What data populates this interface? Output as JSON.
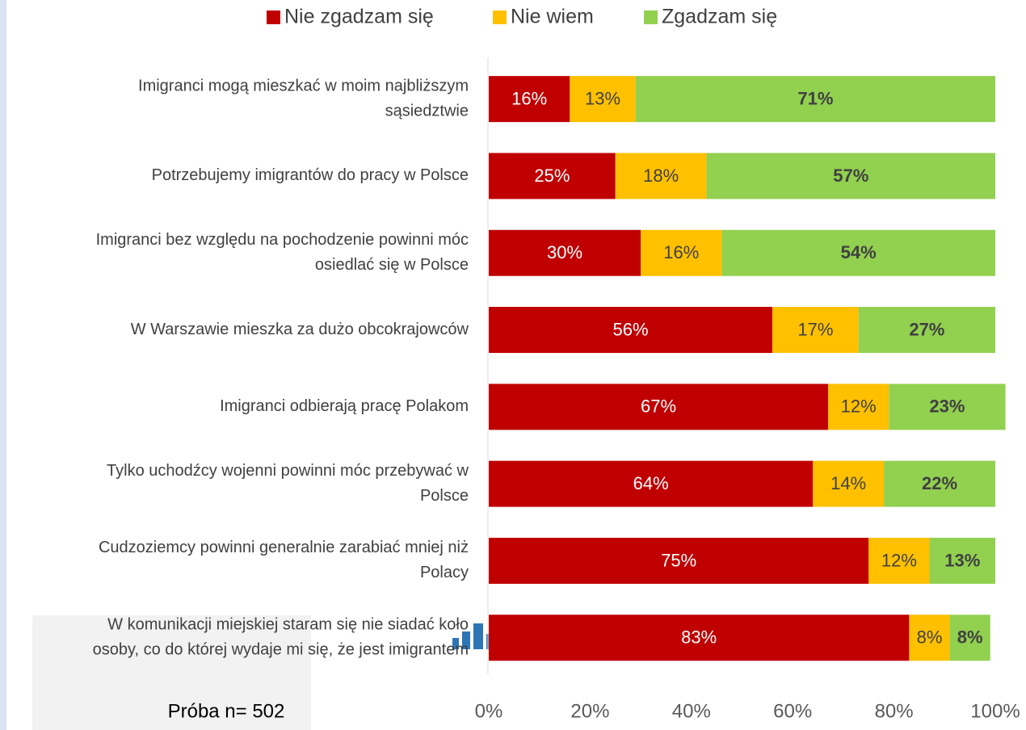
{
  "chart_data": {
    "type": "stacked-bar-horizontal",
    "categories": [
      [
        "Imigranci mogą mieszkać w moim najbliższym",
        "sąsiedztwie"
      ],
      [
        "Potrzebujemy imigrantów do pracy w Polsce"
      ],
      [
        "Imigranci bez względu na pochodzenie powinni móc",
        "osiedlać się w Polsce"
      ],
      [
        "W Warszawie mieszka za dużo obcokrajowców"
      ],
      [
        "Imigranci odbierają pracę Polakom"
      ],
      [
        "Tylko uchodźcy wojenni powinni móc przebywać w",
        "Polsce"
      ],
      [
        "Cudzoziemcy powinni generalnie zarabiać mniej niż",
        "Polacy"
      ],
      [
        "W komunikacji miejskiej staram się nie siadać koło",
        "osoby, co do której wydaje mi się, że jest imigrantem"
      ]
    ],
    "series": [
      {
        "name": "Nie zgadzam się",
        "color": "#c00000",
        "values": [
          16,
          25,
          30,
          56,
          67,
          64,
          75,
          83
        ],
        "value_labels": [
          "16%",
          "25%",
          "30%",
          "56%",
          "67%",
          "64%",
          "75%",
          "83%"
        ]
      },
      {
        "name": "Nie wiem",
        "color": "#ffc000",
        "values": [
          13,
          18,
          16,
          17,
          12,
          14,
          12,
          8
        ],
        "value_labels": [
          "13%",
          "18%",
          "16%",
          "17%",
          "12%",
          "14%",
          "12%",
          "8%"
        ]
      },
      {
        "name": "Zgadzam się",
        "color": "#92d050",
        "values": [
          71,
          57,
          54,
          27,
          23,
          22,
          13,
          8
        ],
        "value_labels": [
          "71%",
          "57%",
          "54%",
          "27%",
          "23%",
          "22%",
          "13%",
          "8%"
        ]
      }
    ],
    "xlim": [
      0,
      100
    ],
    "xticks": [
      {
        "value": 0,
        "label": "0%"
      },
      {
        "value": 20,
        "label": "20%"
      },
      {
        "value": 40,
        "label": "40%"
      },
      {
        "value": 60,
        "label": "60%"
      },
      {
        "value": 80,
        "label": "80%"
      },
      {
        "value": 100,
        "label": "100%"
      }
    ],
    "legend": "top",
    "annotation": "Próba n= 502"
  }
}
